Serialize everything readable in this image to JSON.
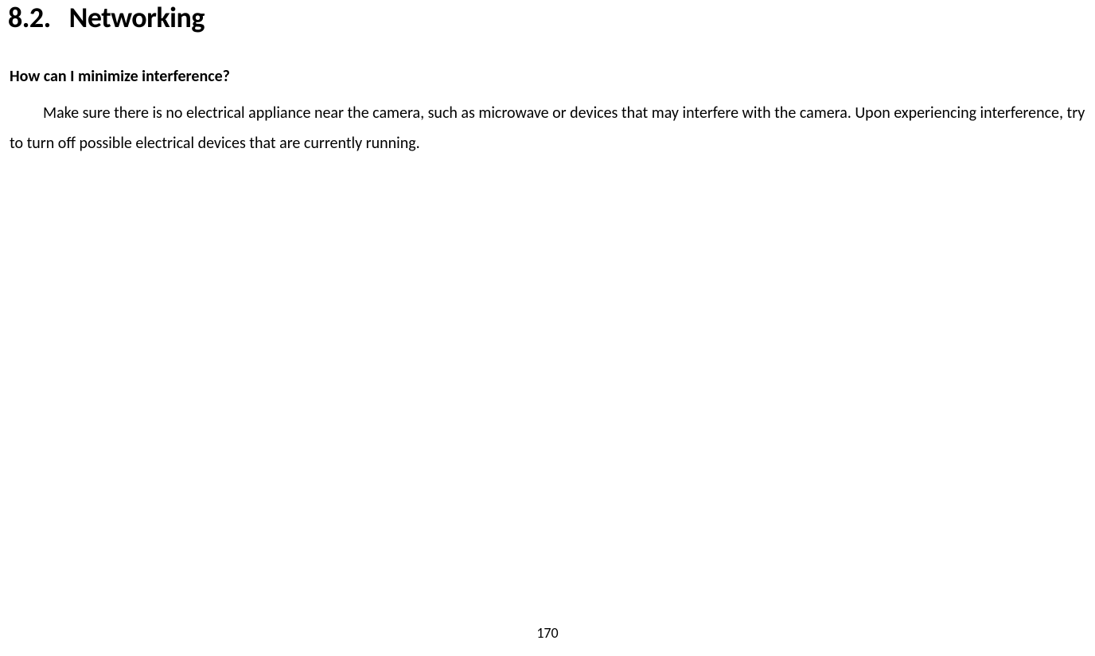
{
  "section": {
    "number": "8.2.",
    "title": "Networking"
  },
  "question": "How can I minimize interference?",
  "body": "Make sure there is no electrical appliance near the camera, such as microwave or devices that may interfere with the camera. Upon experiencing interference, try to turn off possible electrical devices that are currently running.",
  "pageNumber": "170"
}
